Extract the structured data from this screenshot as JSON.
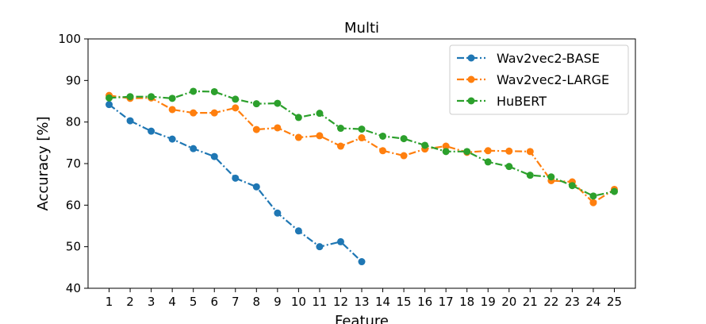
{
  "chart_data": {
    "type": "line",
    "title": "Multi",
    "xlabel": "Feature",
    "ylabel": "Accuracy [%]",
    "xlim": [
      0,
      26
    ],
    "ylim": [
      40,
      100
    ],
    "x_ticks": [
      1,
      2,
      3,
      4,
      5,
      6,
      7,
      8,
      9,
      10,
      11,
      12,
      13,
      14,
      15,
      16,
      17,
      18,
      19,
      20,
      21,
      22,
      23,
      24,
      25
    ],
    "y_ticks": [
      40,
      50,
      60,
      70,
      80,
      90,
      100
    ],
    "grid": false,
    "legend_position": "top-right",
    "series": [
      {
        "name": "Wav2vec2-BASE",
        "color": "#1f77b4",
        "x": [
          1,
          2,
          3,
          4,
          5,
          6,
          7,
          8,
          9,
          10,
          11,
          12,
          13
        ],
        "values": [
          84.2,
          80.3,
          77.8,
          75.9,
          73.6,
          71.7,
          66.5,
          64.4,
          58.1,
          53.8,
          50.0,
          51.2,
          46.4
        ]
      },
      {
        "name": "Wav2vec2-LARGE",
        "color": "#ff7f0e",
        "x": [
          1,
          2,
          3,
          4,
          5,
          6,
          7,
          8,
          9,
          10,
          11,
          12,
          13,
          14,
          15,
          16,
          17,
          18,
          19,
          20,
          21,
          22,
          23,
          24,
          25
        ],
        "values": [
          86.4,
          85.7,
          85.8,
          83.0,
          82.2,
          82.2,
          83.4,
          78.2,
          78.6,
          76.3,
          76.7,
          74.2,
          76.2,
          73.1,
          71.9,
          73.5,
          74.2,
          72.7,
          73.1,
          73.0,
          72.9,
          65.9,
          65.6,
          60.6,
          63.8
        ]
      },
      {
        "name": "HuBERT",
        "color": "#2ca02c",
        "x": [
          1,
          2,
          3,
          4,
          5,
          6,
          7,
          8,
          9,
          10,
          11,
          12,
          13,
          14,
          15,
          16,
          17,
          18,
          19,
          20,
          21,
          22,
          23,
          24,
          25
        ],
        "values": [
          85.8,
          86.1,
          86.1,
          85.7,
          87.4,
          87.3,
          85.5,
          84.4,
          84.5,
          81.1,
          82.1,
          78.5,
          78.3,
          76.6,
          76.0,
          74.4,
          72.9,
          72.9,
          70.4,
          69.3,
          67.2,
          66.8,
          64.7,
          62.2,
          63.3
        ]
      }
    ]
  }
}
